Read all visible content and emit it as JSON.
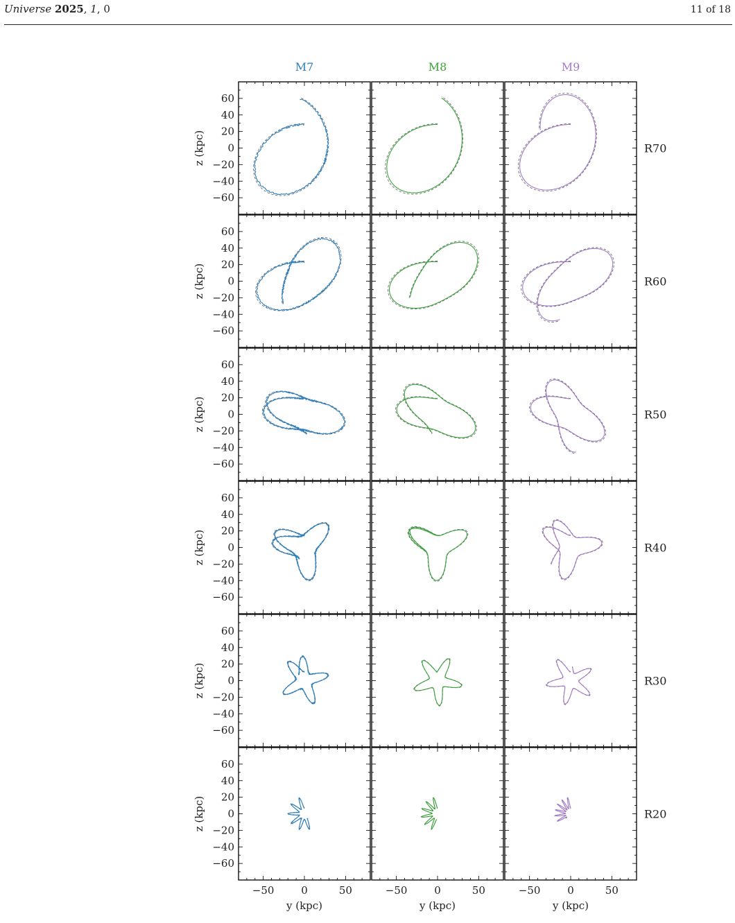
{
  "header": {
    "journal_name": "Universe",
    "year": "2025",
    "volume": "1",
    "article": "0",
    "page": "11 of 18"
  },
  "colors": {
    "M7": "#2e7db8",
    "M8": "#3aa23a",
    "M9": "#a279c8",
    "dashed": "#707070"
  },
  "chart_data": {
    "type": "line",
    "kind": "orbit-projection grid (y–z plane)",
    "column_titles": [
      "M7",
      "M8",
      "M9"
    ],
    "row_labels": [
      "R70",
      "R60",
      "R50",
      "R40",
      "R30",
      "R20"
    ],
    "xlabel": "y (kpc)",
    "ylabel": "z (kpc)",
    "xlim": [
      -80,
      80
    ],
    "ylim": [
      -80,
      80
    ],
    "xticks": [
      "−50",
      "0",
      "50"
    ],
    "yticks": [
      "60",
      "40",
      "20",
      "0",
      "−20",
      "−40",
      "−60"
    ],
    "line_styles": [
      "solid (colored)",
      "dashed (grey)"
    ],
    "orbit_start": [
      0,
      "initial orbital radius (top of orbit)"
    ],
    "orbit_radii_kpc": [
      70,
      60,
      50,
      40,
      30,
      20
    ]
  }
}
